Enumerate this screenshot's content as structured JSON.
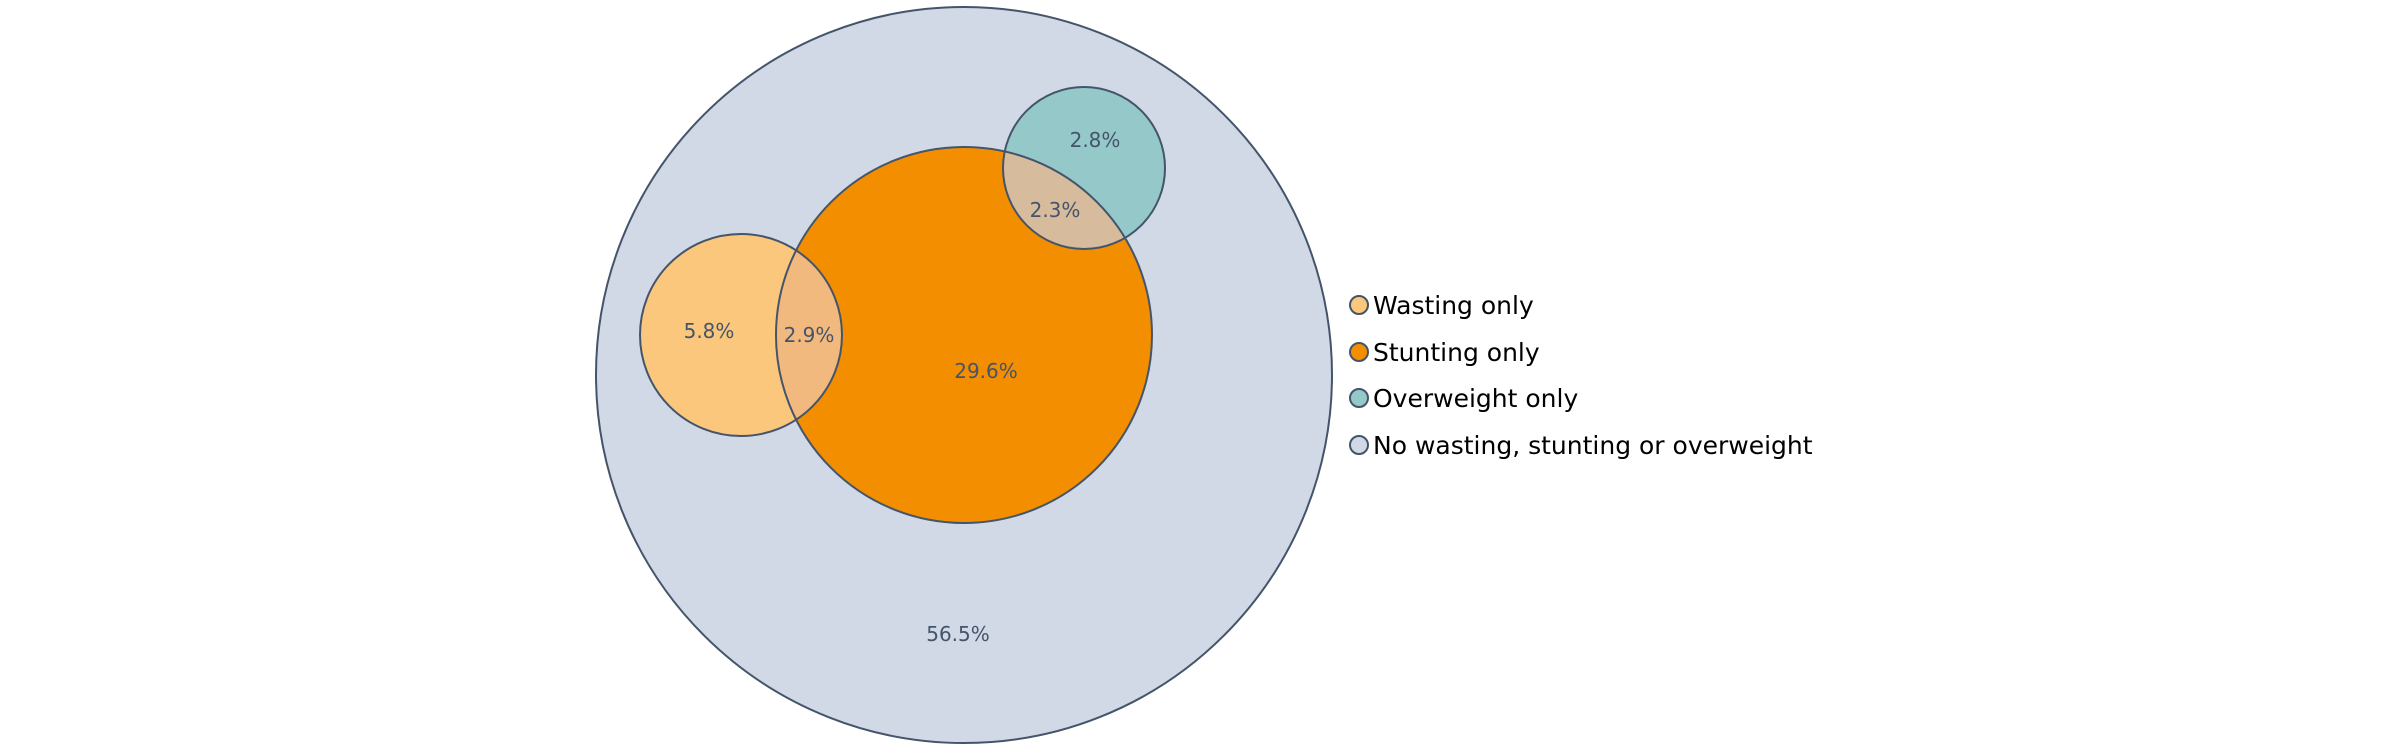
{
  "chart_data": {
    "type": "venn",
    "title": "",
    "unit": "%",
    "sets": [
      {
        "key": "total",
        "legend": "No wasting, stunting or overweight",
        "color": "#d0d9e5"
      },
      {
        "key": "wasting",
        "legend": "Wasting only",
        "color": "#fbc77c"
      },
      {
        "key": "stunting",
        "legend": "Stunting only",
        "color": "#f28e00"
      },
      {
        "key": "overweight",
        "legend": "Overweight only",
        "color": "#94c8c9"
      }
    ],
    "overlap_colors": {
      "wasting_stunting": "#f2b97e",
      "stunting_overweight": "#d6bc9c"
    },
    "outline_color": "#44546a",
    "regions": [
      {
        "key": "none",
        "label": "56.5%",
        "value": 56.5
      },
      {
        "key": "wasting_only",
        "label": "5.8%",
        "value": 5.8
      },
      {
        "key": "wasting_and_stunting",
        "label": "2.9%",
        "value": 2.9
      },
      {
        "key": "stunting_only",
        "label": "29.6%",
        "value": 29.6
      },
      {
        "key": "stunting_and_overweight",
        "label": "2.3%",
        "value": 2.3
      },
      {
        "key": "overweight_only",
        "label": "2.8%",
        "value": 2.8
      }
    ],
    "legend": {
      "placement": "right",
      "order": [
        "wasting",
        "stunting",
        "overweight",
        "total"
      ]
    }
  }
}
